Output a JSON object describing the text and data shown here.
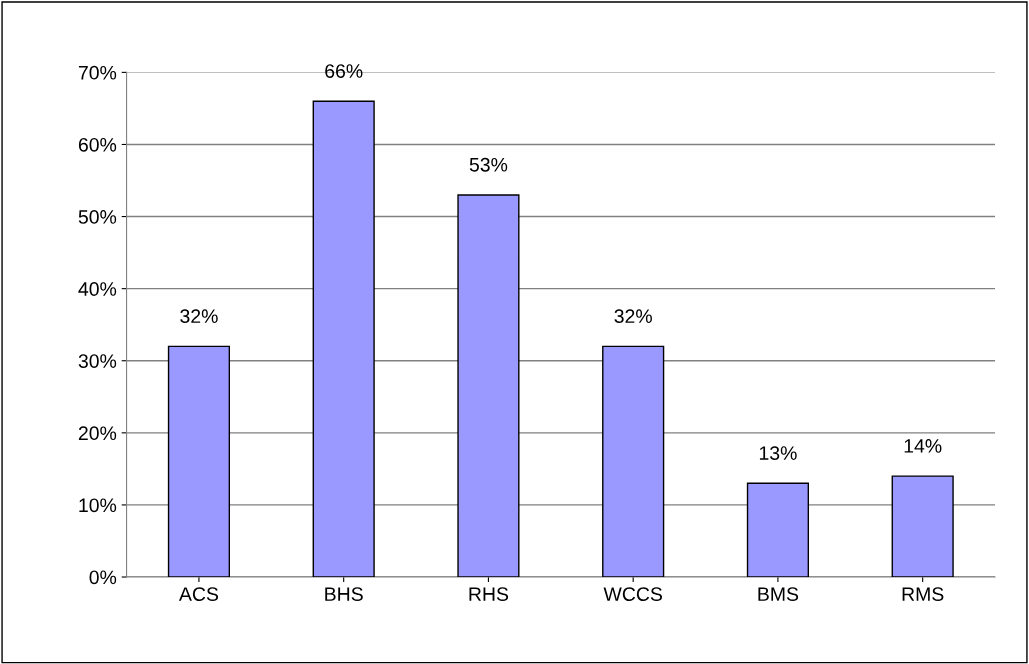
{
  "chart_data": {
    "type": "bar",
    "categories": [
      "ACS",
      "BHS",
      "RHS",
      "WCCS",
      "BMS",
      "RMS"
    ],
    "values": [
      32,
      66,
      53,
      32,
      13,
      14
    ],
    "value_labels": [
      "32%",
      "66%",
      "53%",
      "32%",
      "13%",
      "14%"
    ],
    "color": "#9999ff",
    "ylim": [
      0,
      70
    ],
    "yticks": [
      {
        "value": 0,
        "label": "0%"
      },
      {
        "value": 10,
        "label": "10%"
      },
      {
        "value": 20,
        "label": "20%"
      },
      {
        "value": 30,
        "label": "30%"
      },
      {
        "value": 40,
        "label": "40%"
      },
      {
        "value": 50,
        "label": "50%"
      },
      {
        "value": 60,
        "label": "60%"
      },
      {
        "value": 70,
        "label": "70%"
      }
    ],
    "grid": "y"
  }
}
